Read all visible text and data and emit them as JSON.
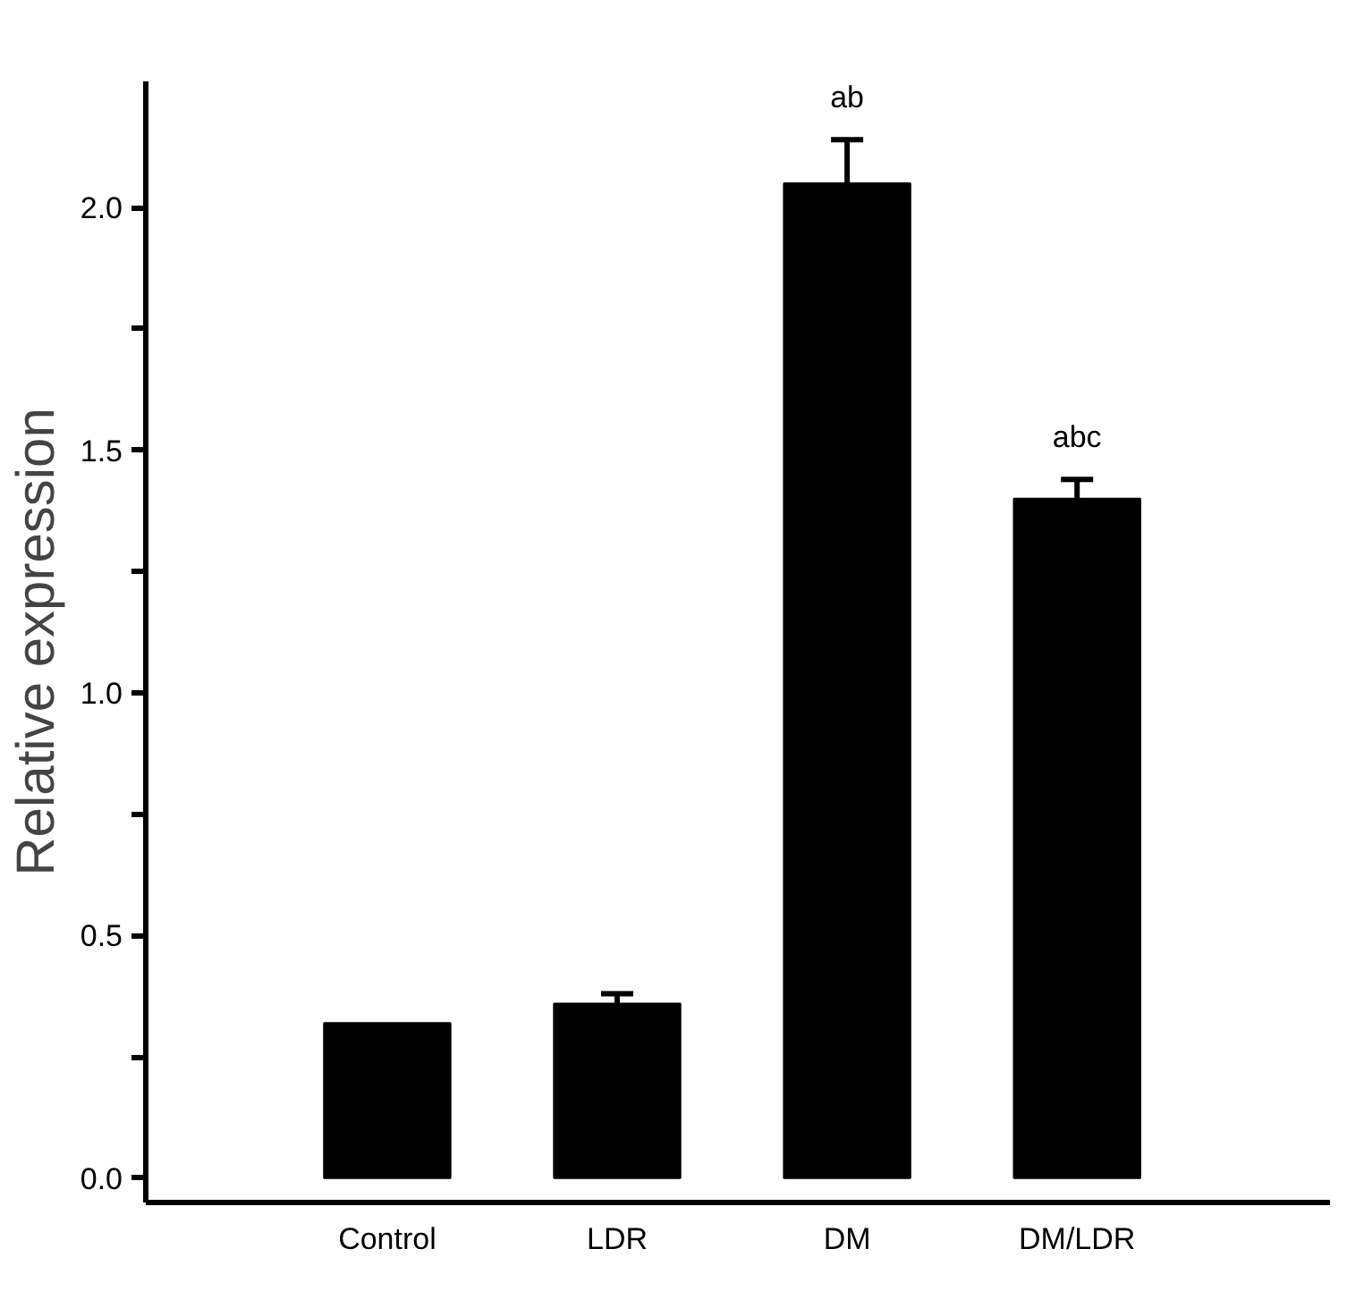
{
  "chart_data": {
    "type": "bar",
    "ylabel": "Relative expression",
    "categories": [
      "Control",
      "LDR",
      "DM",
      "DM/LDR"
    ],
    "values": [
      0.32,
      0.36,
      2.05,
      1.4
    ],
    "errors": [
      null,
      0.02,
      0.09,
      0.04
    ],
    "color": "#000000",
    "ylim": [
      -0.05,
      2.26
    ],
    "yticks": [
      {
        "value": 0,
        "label": "0.0"
      },
      {
        "value": 0.25,
        "label": null
      },
      {
        "value": 0.5,
        "label": "0.5"
      },
      {
        "value": 0.75,
        "label": null
      },
      {
        "value": 1,
        "label": "1.0"
      },
      {
        "value": 1.25,
        "label": null
      },
      {
        "value": 1.5,
        "label": "1.5"
      },
      {
        "value": 1.75,
        "label": null
      },
      {
        "value": 2,
        "label": "2.0"
      }
    ],
    "annotations": [
      {
        "text": "ab",
        "x": "DM",
        "y": 2.05
      },
      {
        "text": "abc",
        "x": "DM/LDR",
        "y": 1.4
      }
    ],
    "grid": false
  }
}
